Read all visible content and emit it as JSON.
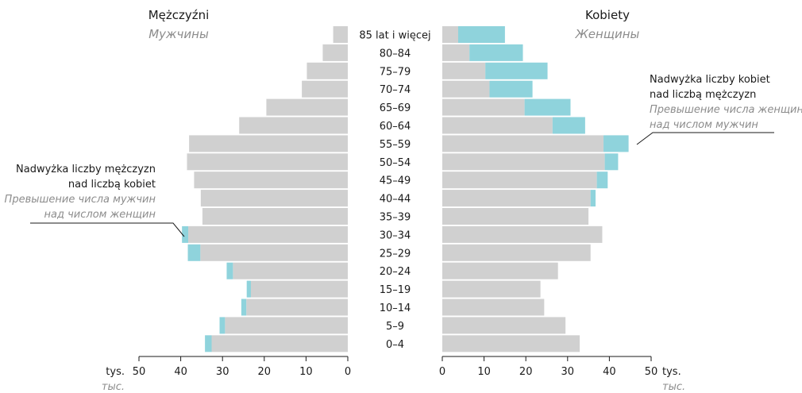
{
  "chart_data": {
    "type": "bar",
    "men_title": "Mężczyźni",
    "men_subtitle": "Мужчины",
    "women_title": "Kobiety",
    "women_subtitle": "Женщины",
    "age_groups": [
      "85 lat i więcej",
      "80–84",
      "75–79",
      "70–74",
      "65–69",
      "60–64",
      "55–59",
      "50–54",
      "45–49",
      "40–44",
      "35–39",
      "30–34",
      "25–29",
      "20–24",
      "15–19",
      "10–14",
      "5–9",
      "0–4"
    ],
    "men_base": [
      3.5,
      6.0,
      9.8,
      11.0,
      19.5,
      26.0,
      38.0,
      38.5,
      36.8,
      35.2,
      34.8,
      38.2,
      35.3,
      27.5,
      23.2,
      24.3,
      29.4,
      32.6
    ],
    "men_excess": [
      0,
      0,
      0,
      0,
      0,
      0,
      0,
      0,
      0,
      0,
      0,
      1.5,
      3.0,
      1.5,
      1.0,
      1.2,
      1.3,
      1.6
    ],
    "women_base": [
      3.8,
      6.5,
      10.3,
      11.3,
      19.7,
      26.4,
      38.6,
      38.9,
      37.0,
      35.5,
      35.0,
      38.3,
      35.5,
      27.7,
      23.5,
      24.4,
      29.5,
      32.9
    ],
    "women_excess": [
      11.2,
      12.8,
      14.9,
      10.3,
      11.0,
      7.8,
      6.0,
      3.2,
      2.6,
      1.2,
      0,
      0,
      0,
      0,
      0,
      0,
      0,
      0
    ],
    "x_range": [
      0,
      50
    ],
    "x_ticks": [
      "50",
      "40",
      "30",
      "20",
      "10",
      "0"
    ],
    "x_ticks_right": [
      "0",
      "10",
      "20",
      "30",
      "40",
      "50"
    ],
    "unit_pl": "tys.",
    "unit_ru": "тыс.",
    "annotation_men": {
      "pl_line1": "Nadwyżka liczby mężczyzn",
      "pl_line2": "nad liczbą kobiet",
      "ru_line1": "Превышение числа мужчин",
      "ru_line2": "над числом женщин"
    },
    "annotation_women": {
      "pl_line1": "Nadwyżka liczby kobiet",
      "pl_line2": "nad liczbą mężczyzn",
      "ru_line1": "Превышение числа женщин",
      "ru_line2": "над числом мужчин"
    },
    "colors": {
      "base": "#d0d0d0",
      "excess": "#8fd3dc",
      "axis": "#1a1a1a",
      "italic_text": "#8c8c8c"
    }
  }
}
